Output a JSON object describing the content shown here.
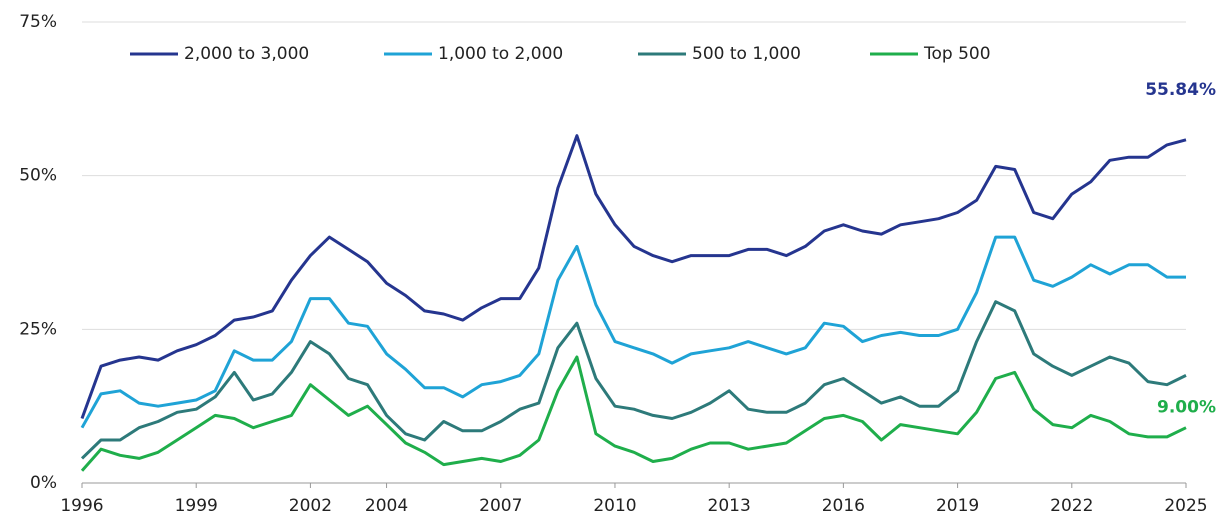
{
  "chart_data": {
    "type": "line",
    "x": [
      1996,
      1996.5,
      1997,
      1997.5,
      1998,
      1998.5,
      1999,
      1999.5,
      2000,
      2000.5,
      2001,
      2001.5,
      2002,
      2002.5,
      2003,
      2003.5,
      2004,
      2004.5,
      2005,
      2005.5,
      2006,
      2006.5,
      2007,
      2007.5,
      2008,
      2008.5,
      2009,
      2009.5,
      2010,
      2010.5,
      2011,
      2011.5,
      2012,
      2012.5,
      2013,
      2013.5,
      2014,
      2014.5,
      2015,
      2015.5,
      2016,
      2016.5,
      2017,
      2017.5,
      2018,
      2018.5,
      2019,
      2019.5,
      2020,
      2020.5,
      2021,
      2021.5,
      2022,
      2022.5,
      2023,
      2023.5,
      2024,
      2024.5,
      2025
    ],
    "series": [
      {
        "name": "2,000 to 3,000",
        "color": "#25358f",
        "end_label": "55.84%",
        "values": [
          10.5,
          19,
          20,
          20.5,
          20,
          21.5,
          22.5,
          24,
          26.5,
          27,
          28,
          33,
          37,
          40,
          38,
          36,
          32.5,
          30.5,
          28,
          27.5,
          26.5,
          28.5,
          30,
          30,
          35,
          48,
          56.5,
          47,
          42,
          38.5,
          37,
          36,
          37,
          37,
          37,
          38,
          38,
          37,
          38.5,
          41,
          42,
          41,
          40.5,
          42,
          42.5,
          43,
          44,
          46,
          51.5,
          51,
          44,
          43,
          47,
          49,
          52.5,
          53,
          53,
          55,
          55.84
        ]
      },
      {
        "name": "1,000 to 2,000",
        "color": "#1fa3d6",
        "values": [
          9,
          14.5,
          15,
          13,
          12.5,
          13,
          13.5,
          15,
          21.5,
          20,
          20,
          23,
          30,
          30,
          26,
          25.5,
          21,
          18.5,
          15.5,
          15.5,
          14,
          16,
          16.5,
          17.5,
          21,
          33,
          38.5,
          29,
          23,
          22,
          21,
          19.5,
          21,
          21.5,
          22,
          23,
          22,
          21,
          22,
          26,
          25.5,
          23,
          24,
          24.5,
          24,
          24,
          25,
          31,
          40,
          40,
          33,
          32,
          33.5,
          35.5,
          34,
          35.5,
          35.5,
          33.5,
          33.5
        ]
      },
      {
        "name": "500 to 1,000",
        "color": "#2d7a7a",
        "values": [
          4,
          7,
          7,
          9,
          10,
          11.5,
          12,
          14,
          18,
          13.5,
          14.5,
          18,
          23,
          21,
          17,
          16,
          11,
          8,
          7,
          10,
          8.5,
          8.5,
          10,
          12,
          13,
          22,
          26,
          17,
          12.5,
          12,
          11,
          10.5,
          11.5,
          13,
          15,
          12,
          11.5,
          11.5,
          13,
          16,
          17,
          15,
          13,
          14,
          12.5,
          12.5,
          15,
          23,
          29.5,
          28,
          21,
          19,
          17.5,
          19,
          20.5,
          19.5,
          16.5,
          16,
          17.5
        ]
      },
      {
        "name": "Top 500",
        "color": "#1fae4b",
        "end_label": "9.00%",
        "values": [
          2,
          5.5,
          4.5,
          4,
          5,
          7,
          9,
          11,
          10.5,
          9,
          10,
          11,
          16,
          13.5,
          11,
          12.5,
          9.5,
          6.5,
          5,
          3,
          3.5,
          4,
          3.5,
          4.5,
          7,
          15,
          20.5,
          8,
          6,
          5,
          3.5,
          4,
          5.5,
          6.5,
          6.5,
          5.5,
          6,
          6.5,
          8.5,
          10.5,
          11,
          10,
          7,
          9.5,
          9,
          8.5,
          8,
          11.5,
          17,
          18,
          12,
          9.5,
          9,
          11,
          10,
          8,
          7.5,
          7.5,
          9.0
        ]
      }
    ],
    "xlim": [
      1996,
      2025
    ],
    "xticks": [
      1996,
      1999,
      2002,
      2004,
      2007,
      2010,
      2013,
      2016,
      2019,
      2022,
      2025
    ],
    "ylim": [
      0,
      75
    ],
    "yticks": [
      {
        "value": 0,
        "label": "0%"
      },
      {
        "value": 25,
        "label": "25%"
      },
      {
        "value": 50,
        "label": "50%"
      },
      {
        "value": 75,
        "label": "75%"
      }
    ],
    "grid": true,
    "legend": "top"
  }
}
